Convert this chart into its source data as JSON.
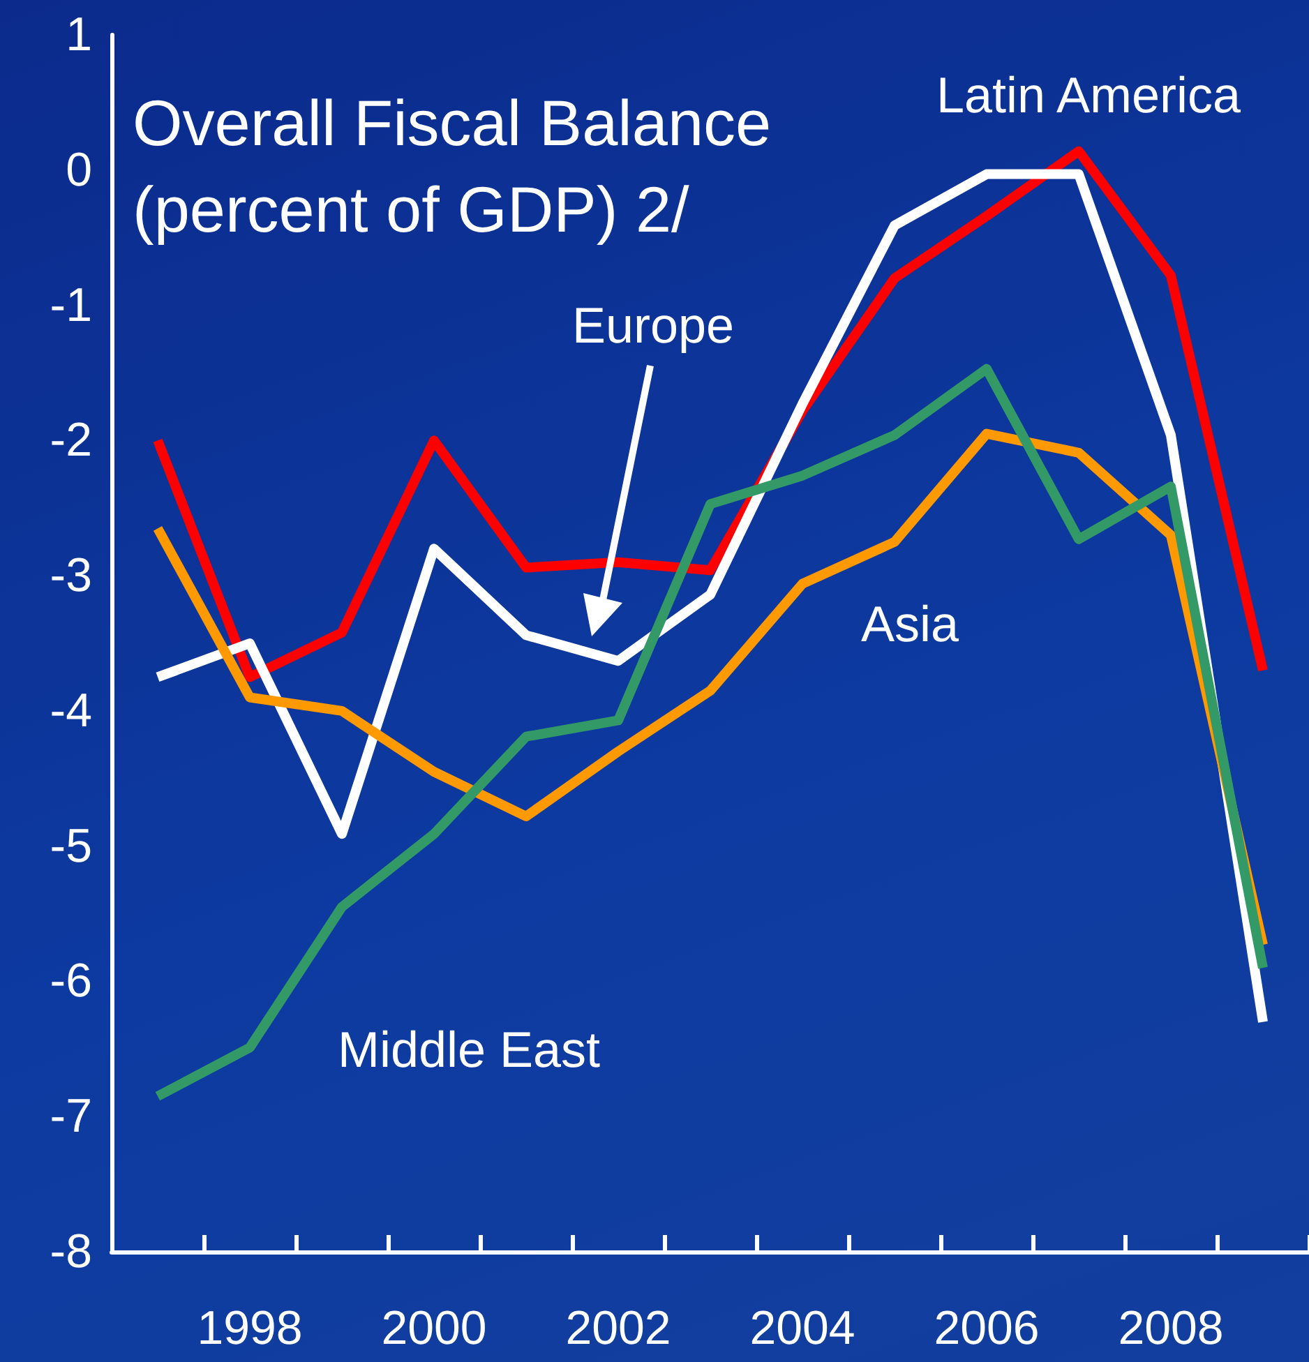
{
  "chart_data": {
    "type": "line",
    "title": "Overall Fiscal Balance (percent of GDP) 2/",
    "categories": [
      null,
      "1998",
      null,
      "2000",
      null,
      "2002",
      null,
      "2004",
      null,
      "2006",
      null,
      "2008",
      null
    ],
    "series": [
      {
        "name": "Latin America",
        "color": "#ff0000",
        "values": [
          -2.0,
          -3.75,
          -3.42,
          -2.0,
          -2.94,
          -2.9,
          -2.96,
          -1.78,
          -0.8,
          -0.34,
          0.14,
          -0.78,
          -3.7
        ]
      },
      {
        "name": "Europe",
        "color": "#ffffff",
        "values": [
          -3.75,
          -3.5,
          -4.91,
          -2.8,
          -3.44,
          -3.63,
          -3.14,
          -1.73,
          -0.41,
          -0.03,
          -0.03,
          -1.96,
          -6.3
        ]
      },
      {
        "name": "Asia",
        "color": "#ff9900",
        "values": [
          -2.65,
          -3.9,
          -4.0,
          -4.45,
          -4.78,
          -4.3,
          -3.85,
          -3.06,
          -2.75,
          -1.95,
          -2.09,
          -2.7,
          -5.73
        ]
      },
      {
        "name": "Middle East",
        "color": "#339966",
        "values": [
          -6.85,
          -6.49,
          -5.45,
          -4.91,
          -4.19,
          -4.07,
          -2.47,
          -2.26,
          -1.96,
          -1.47,
          -2.73,
          -2.34,
          -5.9
        ]
      }
    ],
    "ylim": [
      -8,
      1
    ],
    "yticks": [
      -8,
      -7,
      -6,
      -5,
      -4,
      -3,
      -2,
      -1,
      0,
      1
    ],
    "grid": false,
    "legend": false,
    "marker": "none",
    "line_style": "solid"
  }
}
